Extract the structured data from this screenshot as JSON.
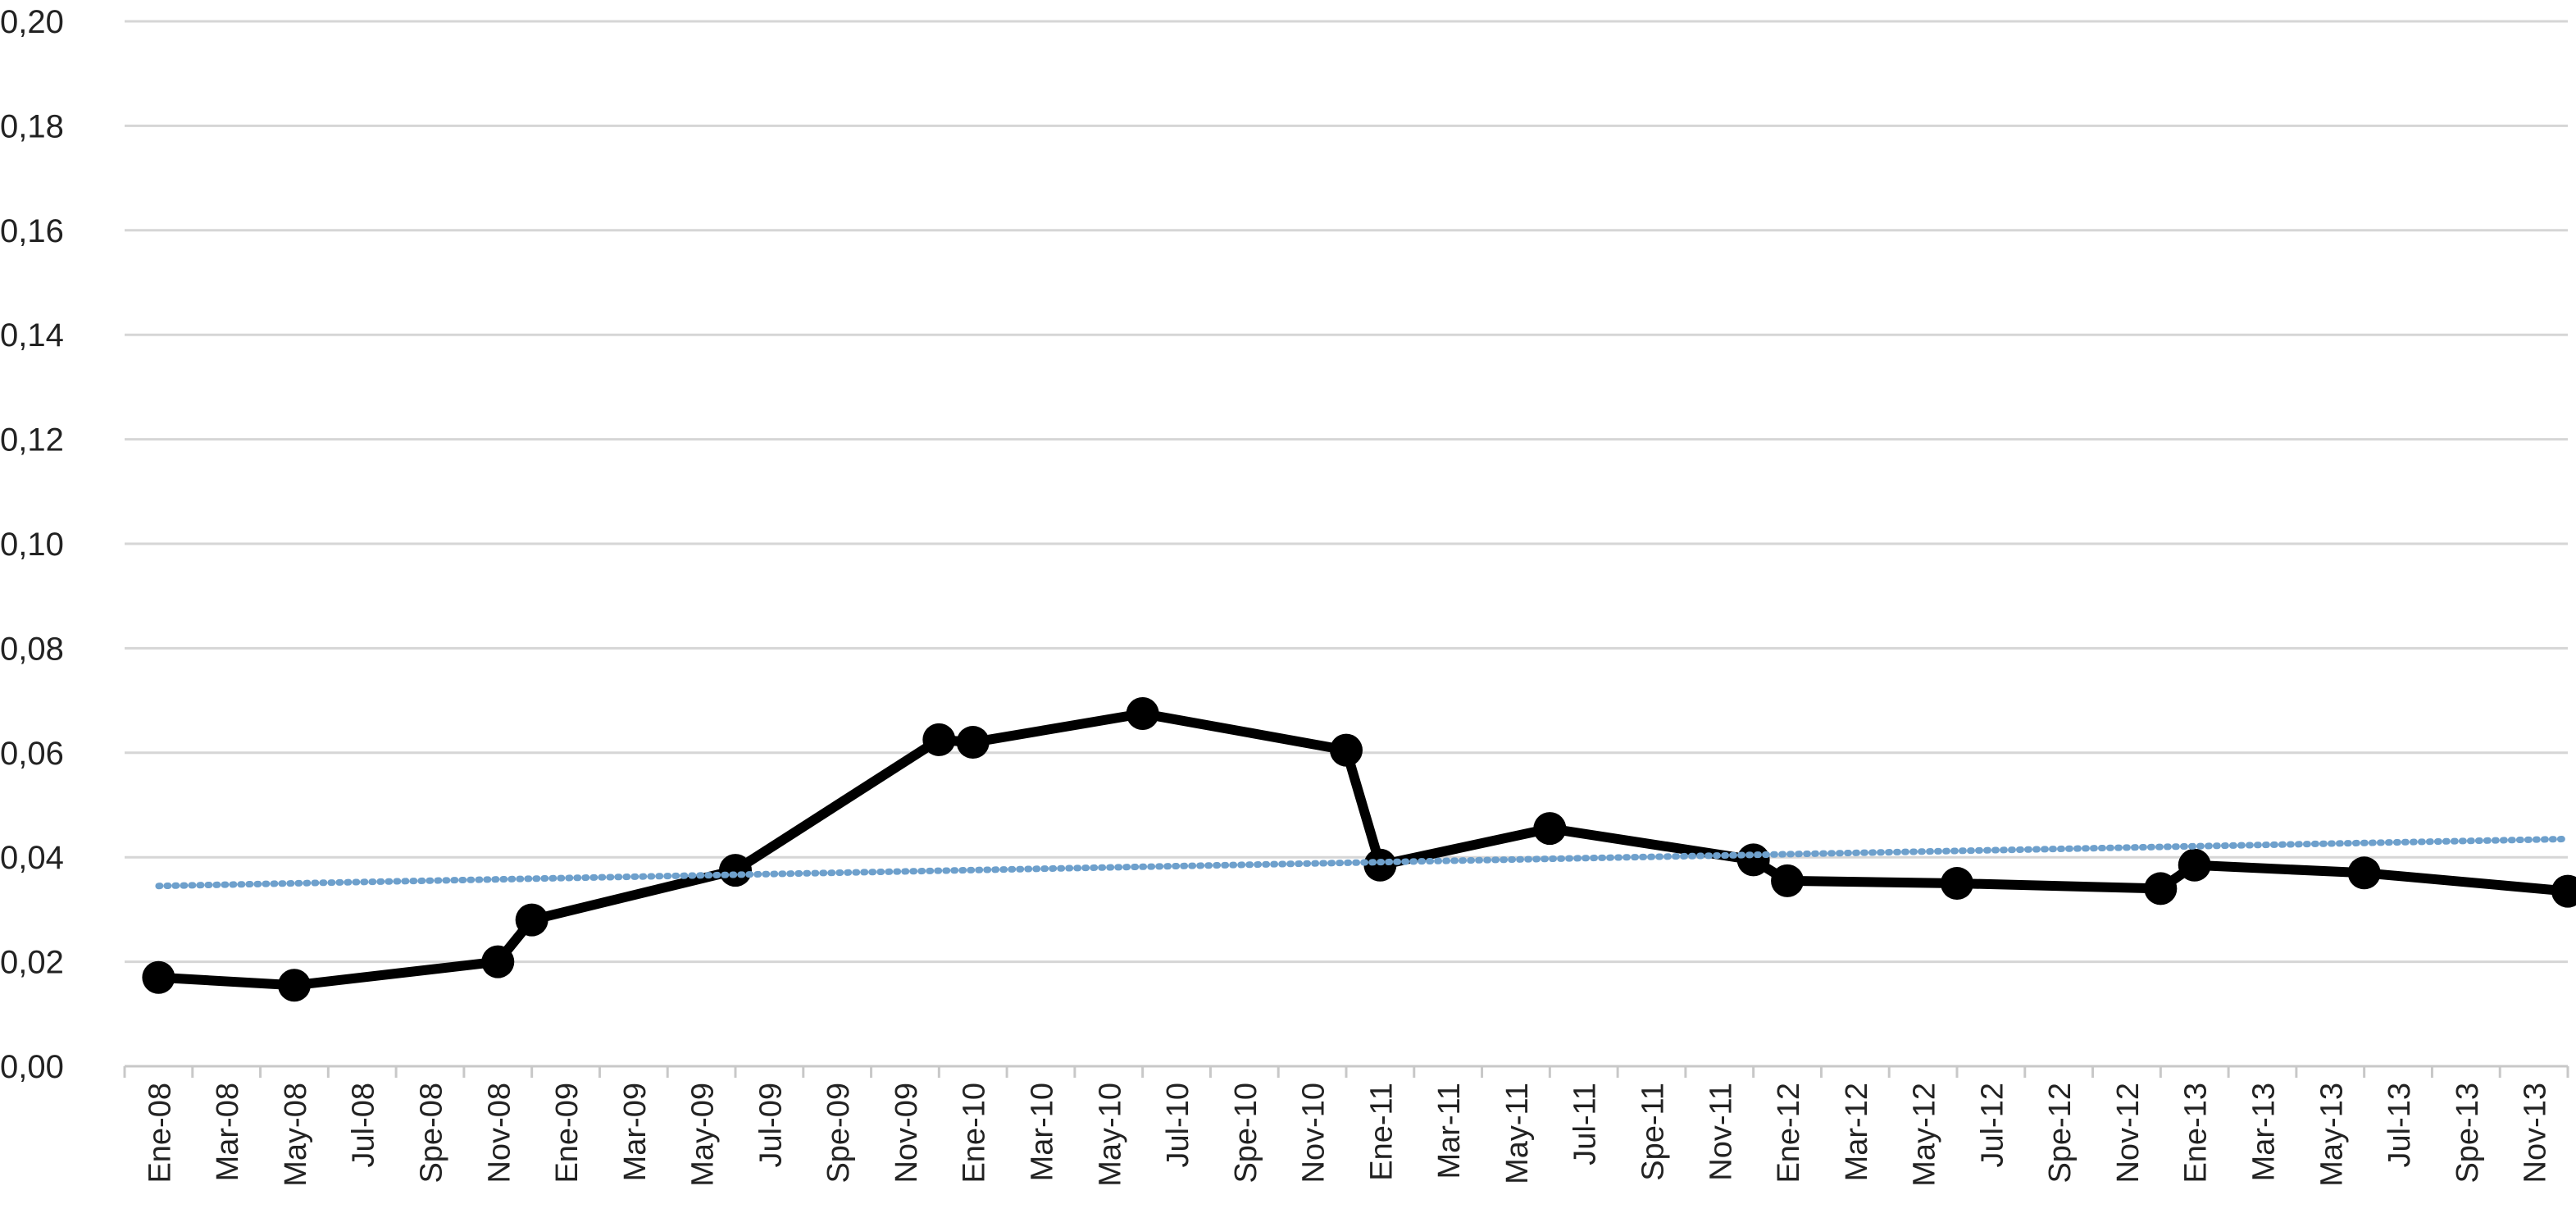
{
  "chart_data": {
    "type": "line",
    "title": "",
    "xlabel": "",
    "ylabel": "",
    "ylim": [
      0,
      0.2
    ],
    "y_ticks": [
      "0,00",
      "0,02",
      "0,04",
      "0,06",
      "0,08",
      "0,10",
      "0,12",
      "0,14",
      "0,16",
      "0,18",
      "0,20"
    ],
    "grid": "horizontal",
    "legend": "none",
    "categories": [
      "Ene-08",
      "Mar-08",
      "May-08",
      "Jul-08",
      "Spe-08",
      "Nov-08",
      "Ene-09",
      "Mar-09",
      "May-09",
      "Jul-09",
      "Spe-09",
      "Nov-09",
      "Ene-10",
      "Mar-10",
      "May-10",
      "Jul-10",
      "Spe-10",
      "Nov-10",
      "Ene-11",
      "Mar-11",
      "May-11",
      "Jul-11",
      "Spe-11",
      "Nov-11",
      "Ene-12",
      "Mar-12",
      "May-12",
      "Jul-12",
      "Spe-12",
      "Nov-12",
      "Ene-13",
      "Mar-13",
      "May-13",
      "Jul-13",
      "Spe-13",
      "Nov-13"
    ],
    "series": [
      {
        "style": "solid-markers",
        "color": "#000000",
        "points": [
          {
            "x": "Ene-08",
            "y": 0.017
          },
          {
            "x": "May-08",
            "y": 0.0155
          },
          {
            "x": "Nov-08",
            "y": 0.02
          },
          {
            "x": "Dic-08",
            "y": 0.028
          },
          {
            "x": "Jun-09",
            "y": 0.0375
          },
          {
            "x": "Dic-09",
            "y": 0.0625
          },
          {
            "x": "Ene-10",
            "y": 0.062
          },
          {
            "x": "Jun-10",
            "y": 0.0675
          },
          {
            "x": "Dic-10",
            "y": 0.0605
          },
          {
            "x": "Ene-11",
            "y": 0.0385
          },
          {
            "x": "Jun-11",
            "y": 0.0455
          },
          {
            "x": "Dic-11",
            "y": 0.0395
          },
          {
            "x": "Ene-12",
            "y": 0.0355
          },
          {
            "x": "Jun-12",
            "y": 0.035
          },
          {
            "x": "Dic-12",
            "y": 0.034
          },
          {
            "x": "Ene-13",
            "y": 0.0385
          },
          {
            "x": "Jun-13",
            "y": 0.037
          },
          {
            "x": "Dic-13",
            "y": 0.0335
          }
        ]
      },
      {
        "style": "dotted-trendline",
        "color": "#6ea0cc",
        "points": [
          {
            "x": "Ene-08",
            "y": 0.0345
          },
          {
            "x": "Dic-13",
            "y": 0.0435
          }
        ]
      }
    ]
  }
}
